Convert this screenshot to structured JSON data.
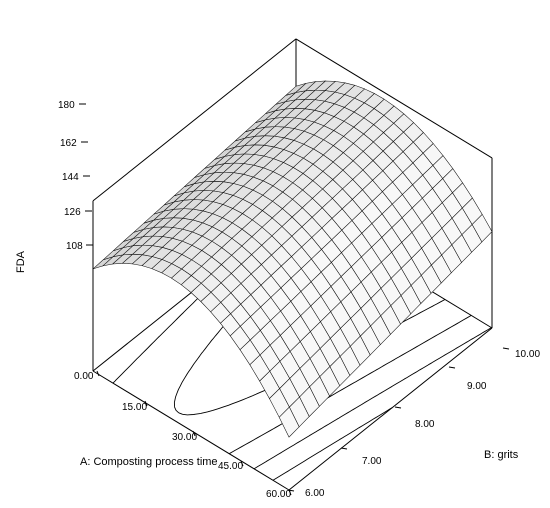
{
  "chart_data": {
    "type": "surface",
    "zlabel": "FDA",
    "xlabel": "A: Composting process time",
    "ylabel": "B: grits",
    "x_ticks": [
      "0.00",
      "15.00",
      "30.00",
      "45.00",
      "60.00"
    ],
    "y_ticks": [
      "6.00",
      "7.00",
      "8.00",
      "9.00",
      "10.00"
    ],
    "z_ticks": [
      "108",
      "126",
      "144",
      "162",
      "180"
    ],
    "xlim": [
      0,
      60
    ],
    "ylim": [
      6,
      10
    ],
    "zlim": [
      90,
      180
    ],
    "corner_values": [
      {
        "x": 0,
        "y": 6,
        "z": 144
      },
      {
        "x": 0,
        "y": 10,
        "z": 155
      },
      {
        "x": 60,
        "y": 6,
        "z": 118
      },
      {
        "x": 60,
        "y": 10,
        "z": 141
      }
    ],
    "peak": {
      "x": 30,
      "z_near_low_y": 163,
      "z_near_high_y": 176
    },
    "mesh_divisions": 20,
    "projected_contours": 4,
    "grid": false
  }
}
